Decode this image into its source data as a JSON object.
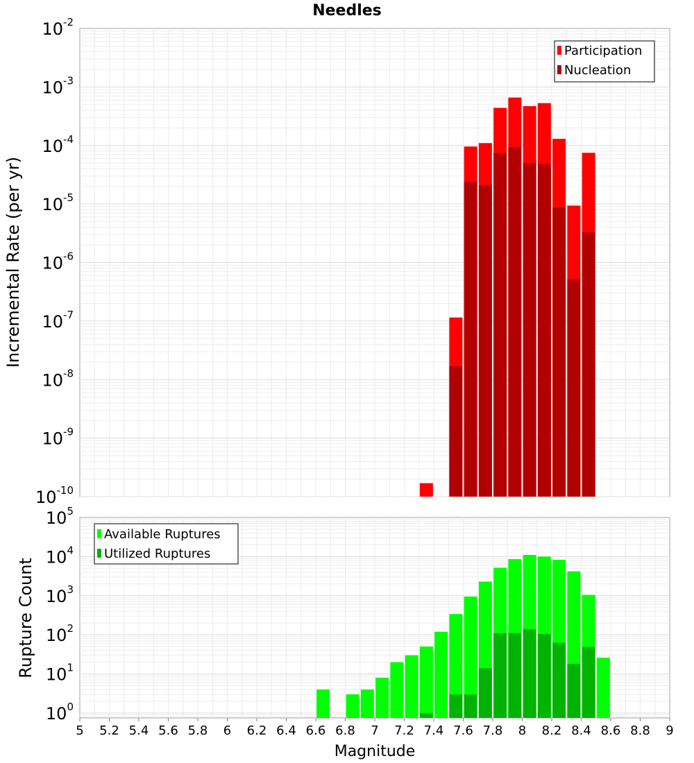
{
  "chart_data": [
    {
      "type": "bar",
      "title": "Needles",
      "xlabel": "",
      "ylabel": "Incremental Rate (per yr)",
      "yscale": "log",
      "xlim": [
        5,
        9
      ],
      "ylim": [
        1e-10,
        0.01
      ],
      "grid": true,
      "legend_position": "top-right",
      "x": [
        7.35,
        7.55,
        7.65,
        7.75,
        7.85,
        7.95,
        8.05,
        8.15,
        8.25,
        8.35,
        8.45
      ],
      "series": [
        {
          "name": "Participation",
          "color": "#ff0000",
          "values": [
            1.7e-10,
            1.15e-07,
            9.6e-05,
            0.00011,
            0.00044,
            0.00066,
            0.00047,
            0.00053,
            0.00013,
            9.4e-06,
            7.5e-05
          ]
        },
        {
          "name": "Nucleation",
          "color": "#b20000",
          "values": [
            null,
            1.7e-08,
            2.4e-05,
            2.1e-05,
            7.4e-05,
            9.3e-05,
            5e-05,
            4.8e-05,
            8.7e-06,
            5.2e-07,
            3.3e-06
          ]
        }
      ]
    },
    {
      "type": "bar",
      "title": "",
      "xlabel": "Magnitude",
      "ylabel": "Rupture Count",
      "yscale": "log",
      "xlim": [
        5,
        9
      ],
      "ylim": [
        0.75,
        100000.0
      ],
      "grid": true,
      "legend_position": "top-left",
      "x": [
        6.65,
        6.85,
        6.95,
        7.05,
        7.15,
        7.25,
        7.35,
        7.45,
        7.55,
        7.65,
        7.75,
        7.85,
        7.95,
        8.05,
        8.15,
        8.25,
        8.35,
        8.45,
        8.55
      ],
      "series": [
        {
          "name": "Available Ruptures",
          "color": "#00ff00",
          "values": [
            4,
            3,
            4,
            8,
            20,
            30,
            50,
            120,
            340,
            950,
            2300,
            5200,
            8600,
            11000,
            10000,
            8300,
            4200,
            1050,
            26
          ]
        },
        {
          "name": "Utilized Ruptures",
          "color": "#00b300",
          "values": [
            null,
            null,
            null,
            null,
            null,
            null,
            1,
            null,
            3,
            3,
            14,
            110,
            110,
            140,
            105,
            63,
            18,
            49,
            null
          ]
        }
      ],
      "xticks": [
        "5",
        "5.2",
        "5.4",
        "5.6",
        "5.8",
        "6",
        "6.2",
        "6.4",
        "6.6",
        "6.8",
        "7",
        "7.2",
        "7.4",
        "7.6",
        "7.8",
        "8",
        "8.2",
        "8.4",
        "8.6",
        "8.8",
        "9"
      ]
    }
  ],
  "top": {
    "ticks": [
      {
        "base": "10",
        "exp": "-2"
      },
      {
        "base": "10",
        "exp": "-3"
      },
      {
        "base": "10",
        "exp": "-4"
      },
      {
        "base": "10",
        "exp": "-5"
      },
      {
        "base": "10",
        "exp": "-6"
      },
      {
        "base": "10",
        "exp": "-7"
      },
      {
        "base": "10",
        "exp": "-8"
      },
      {
        "base": "10",
        "exp": "-9"
      },
      {
        "base": "10",
        "exp": "-10"
      }
    ]
  },
  "bottom": {
    "ticks": [
      {
        "base": "10",
        "exp": "5"
      },
      {
        "base": "10",
        "exp": "4"
      },
      {
        "base": "10",
        "exp": "3"
      },
      {
        "base": "10",
        "exp": "2"
      },
      {
        "base": "10",
        "exp": "1"
      },
      {
        "base": "10",
        "exp": "0"
      }
    ]
  }
}
